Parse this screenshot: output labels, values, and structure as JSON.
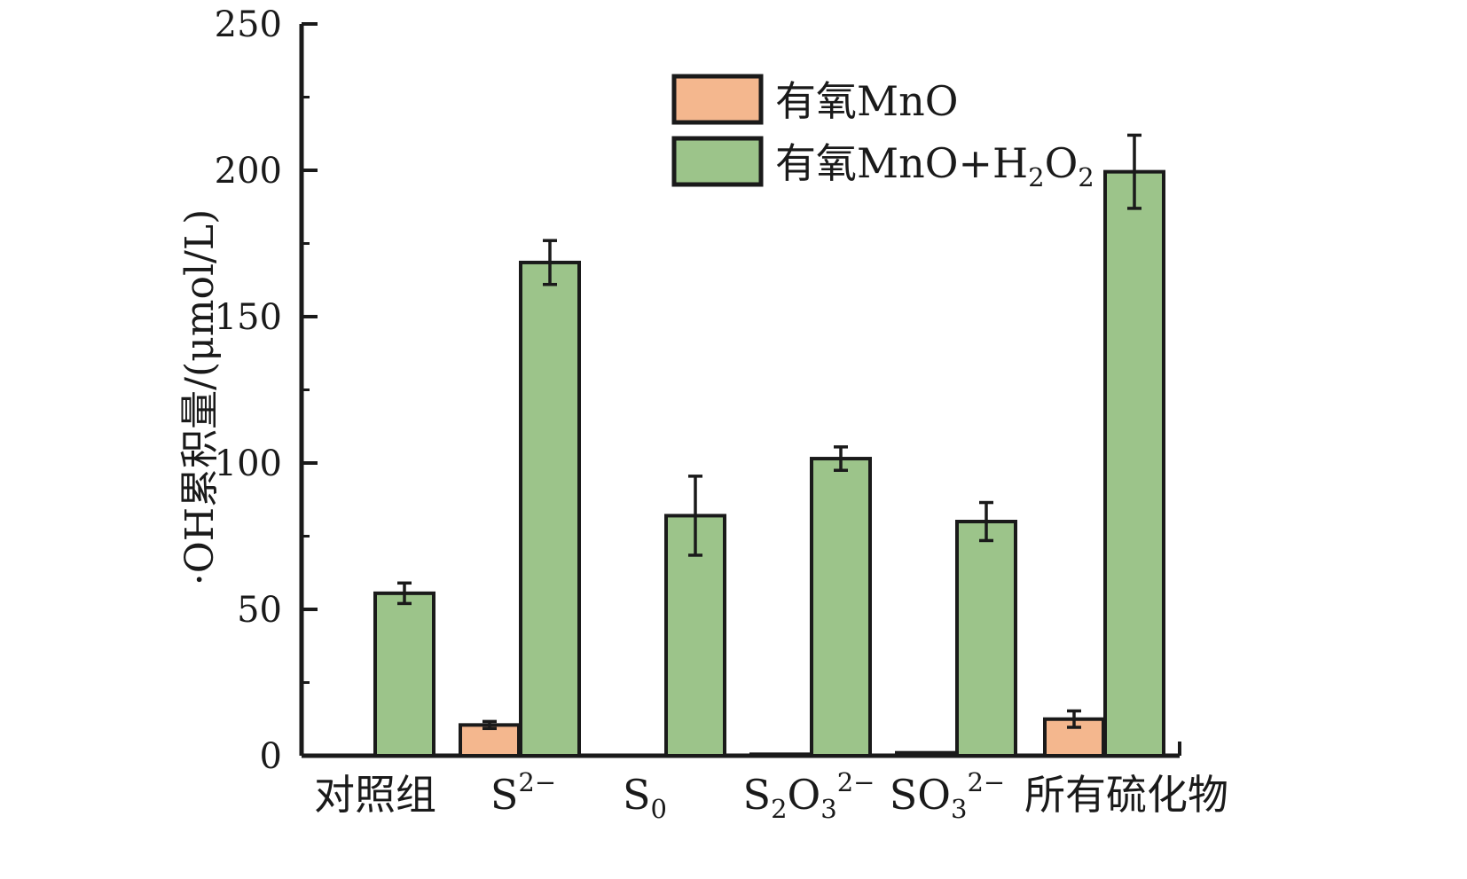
{
  "chart_data": {
    "type": "bar",
    "ylabel": "·OH累积量/(μmol/L)",
    "ylim": [
      0,
      250
    ],
    "yticks": [
      0,
      50,
      100,
      150,
      200,
      250
    ],
    "grid": false,
    "legend_position": "top-right",
    "categories": [
      {
        "base": "对照组",
        "sub": "",
        "sup": ""
      },
      {
        "base": "S",
        "sub": "",
        "sup": "2−"
      },
      {
        "base": "S",
        "sub": "0",
        "sup": ""
      },
      {
        "base": "S",
        "sub": "2",
        "mid": "O",
        "sub2": "3",
        "sup": "2−"
      },
      {
        "base": "SO",
        "sub": "3",
        "sup": "2−"
      },
      {
        "base": "所有硫化物",
        "sub": "",
        "sup": ""
      }
    ],
    "series": [
      {
        "name": "有氧MnO",
        "legend": {
          "base": "有氧MnO"
        },
        "color": "#f4b78e",
        "values": [
          0,
          10.5,
          0,
          0.5,
          1,
          12.5
        ],
        "errors": [
          null,
          1.2,
          null,
          null,
          null,
          2.8
        ]
      },
      {
        "name": "有氧MnO+H2O2",
        "legend": {
          "base": "有氧MnO+H",
          "sub": "2",
          "mid": "O",
          "sub2": "2"
        },
        "color": "#9cc48a",
        "values": [
          55.5,
          168.5,
          82,
          101.5,
          80,
          199.5
        ],
        "errors": [
          3.5,
          7.5,
          13.5,
          4,
          6.5,
          12.5
        ]
      }
    ]
  }
}
